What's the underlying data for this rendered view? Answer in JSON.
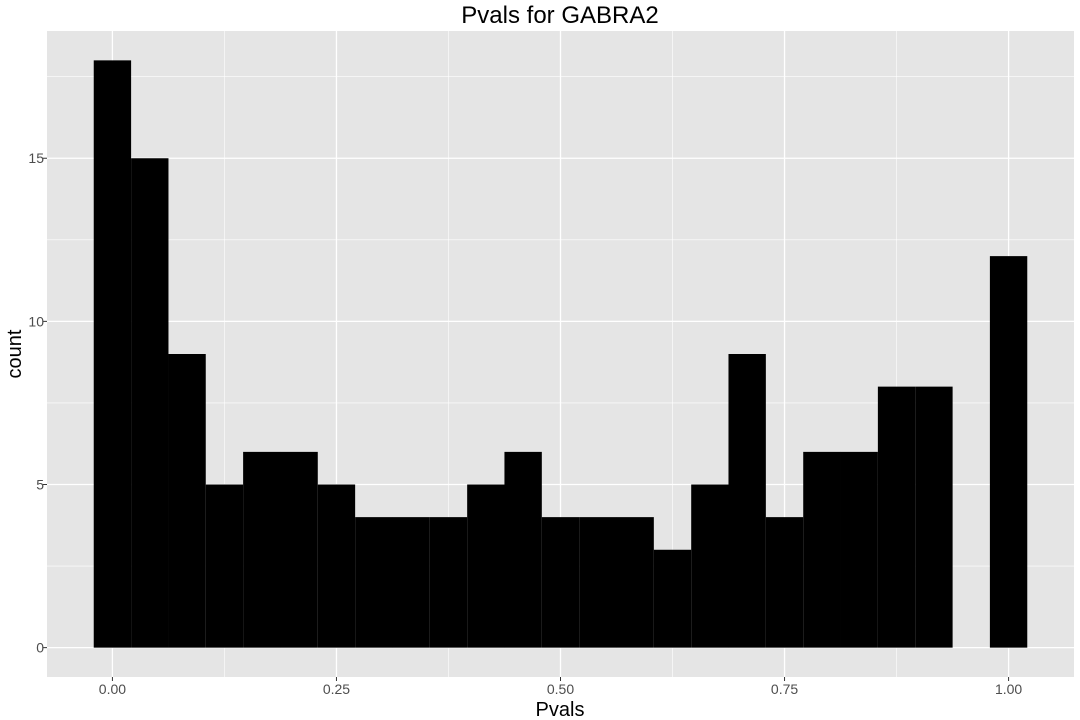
{
  "chart_data": {
    "type": "bar",
    "title": "Pvals for GABRA2",
    "xlabel": "Pvals",
    "ylabel": "count",
    "bin_width": 0.0417,
    "x": [
      0.0,
      0.0417,
      0.0833,
      0.125,
      0.1667,
      0.2083,
      0.25,
      0.2917,
      0.3333,
      0.375,
      0.4167,
      0.4583,
      0.5,
      0.5417,
      0.5833,
      0.625,
      0.6667,
      0.7083,
      0.75,
      0.7917,
      0.8333,
      0.875,
      0.9167,
      0.9583,
      1.0
    ],
    "values": [
      18,
      15,
      9,
      5,
      6,
      6,
      5,
      4,
      4,
      4,
      5,
      6,
      4,
      4,
      4,
      3,
      5,
      9,
      4,
      6,
      6,
      8,
      8,
      0,
      12
    ],
    "xlim": [
      -0.073,
      1.073
    ],
    "ylim": [
      -0.9,
      18.9
    ],
    "x_ticks": [
      0.0,
      0.25,
      0.5,
      0.75,
      1.0
    ],
    "x_tick_labels": [
      "0.00",
      "0.25",
      "0.50",
      "0.75",
      "1.00"
    ],
    "y_ticks": [
      0,
      5,
      10,
      15
    ],
    "y_tick_labels": [
      "0",
      "5",
      "10",
      "15"
    ],
    "grid": true,
    "legend": "none",
    "colors": {
      "panel_background": "#e5e5e5",
      "grid": "#ffffff",
      "bar_fill": "#000000",
      "tick_text": "#4d4d4d"
    }
  }
}
